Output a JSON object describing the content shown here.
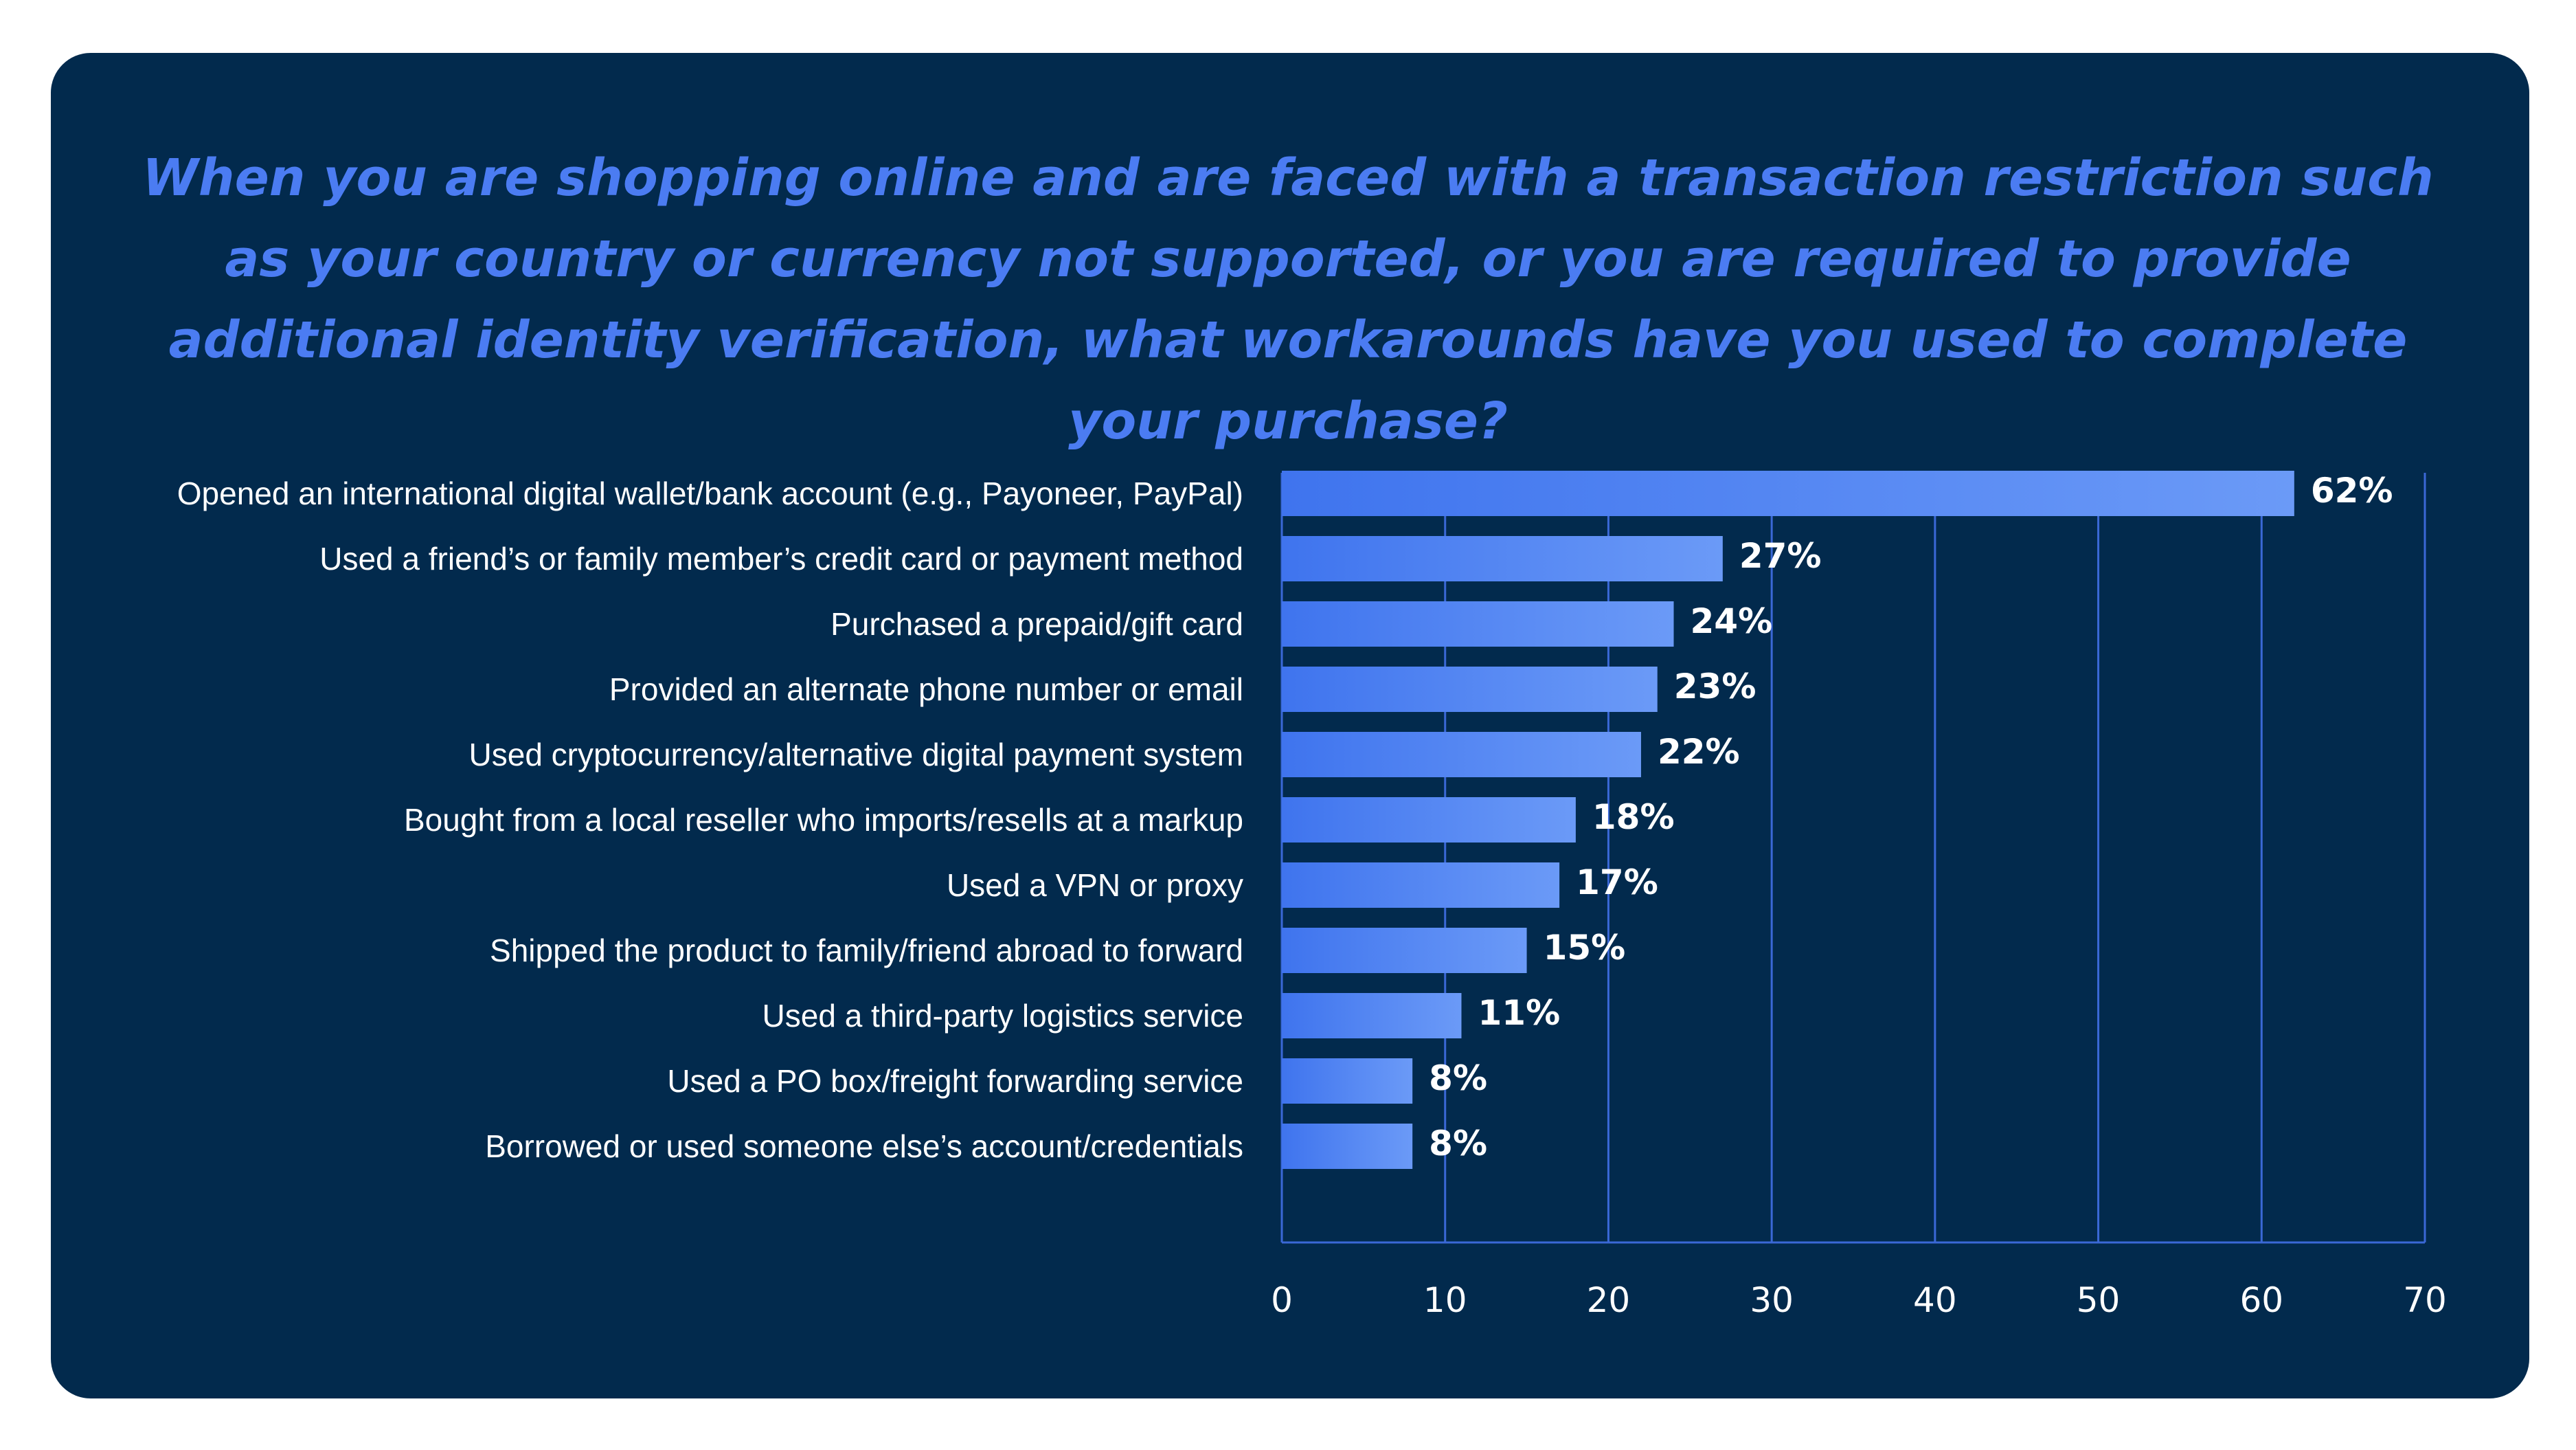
{
  "colors": {
    "background": "#022a4d",
    "title": "#4b7cf2",
    "bar_start": "#3f74ee",
    "bar_end": "#6b9af7",
    "grid": "#3a68d6",
    "text": "#ffffff"
  },
  "chart_data": {
    "type": "bar",
    "orientation": "horizontal",
    "title": "When you are shopping online and are faced with a transaction restriction such as your country or currency not supported, or you are required to provide additional identity verification, what workarounds have you used to complete your purchase?",
    "categories": [
      "Opened an international digital wallet/bank account (e.g., Payoneer, PayPal)",
      "Used a friend’s or family member’s credit card or payment method",
      "Purchased a prepaid/gift card",
      "Provided an alternate phone number or email",
      "Used cryptocurrency/alternative digital payment system",
      "Bought from a local reseller who imports/resells at a markup",
      "Used a VPN or proxy",
      "Shipped the product to family/friend abroad to forward",
      "Used a third-party logistics service",
      "Used a PO box/freight forwarding service",
      "Borrowed or used someone else’s account/credentials"
    ],
    "values": [
      62,
      27,
      24,
      23,
      22,
      18,
      17,
      15,
      11,
      8,
      8
    ],
    "value_labels": [
      "62%",
      "27%",
      "24%",
      "23%",
      "22%",
      "18%",
      "17%",
      "15%",
      "11%",
      "8%",
      "8%"
    ],
    "xlim": [
      0,
      70
    ],
    "xticks": [
      0,
      10,
      20,
      30,
      40,
      50,
      60,
      70
    ],
    "xtick_labels": [
      "0",
      "10",
      "20",
      "30",
      "40",
      "50",
      "60",
      "70"
    ],
    "grid": "vertical",
    "legend": "none"
  }
}
